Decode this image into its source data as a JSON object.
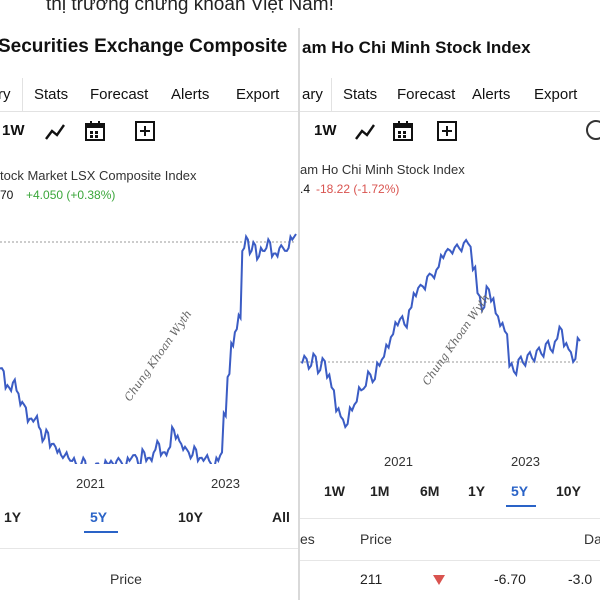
{
  "caption": "thị trường chứng khoán Việt Nam!",
  "left": {
    "title": "Securities Exchange Composite",
    "tabs": [
      "ry",
      "Stats",
      "Forecast",
      "Alerts",
      "Export"
    ],
    "toolbar": {
      "range_label": "1W",
      "icons": [
        "line-chart-icon",
        "calendar-icon",
        "plus-box-icon"
      ]
    },
    "legend_name": "tock Market LSX Composite Index",
    "legend_value": "70",
    "legend_change": "+4.050 (+0.38%)",
    "years": [
      "2021",
      "2023"
    ],
    "ranges": [
      "1Y",
      "5Y",
      "10Y",
      "All"
    ],
    "active_range": "5Y",
    "table_header": [
      "Price"
    ],
    "watermark": "Chung Khoan Wyth",
    "colors": {
      "line": "#3b5cc4",
      "positive": "#3aa63a"
    },
    "chart_data": {
      "type": "line",
      "title": "",
      "x_ticks": [
        "2021",
        "2023"
      ],
      "series": [
        {
          "values": [
            52,
            51,
            46,
            44,
            48,
            43,
            40,
            38,
            34,
            33,
            35,
            30,
            27,
            29,
            25,
            24,
            23,
            20,
            22,
            19,
            20,
            17,
            18,
            19,
            16,
            15,
            18,
            17,
            16,
            18,
            19,
            17,
            20,
            18,
            17,
            19,
            21,
            20,
            18,
            22,
            20,
            19,
            23,
            25,
            22,
            21,
            24,
            30,
            28,
            25,
            24,
            22,
            21,
            23,
            20,
            19,
            21,
            18,
            17,
            19,
            22,
            35,
            50,
            60,
            66,
            70,
            95,
            98,
            94,
            96,
            92,
            94,
            95,
            97,
            93,
            92,
            96,
            94,
            95,
            98,
            100
          ]
        }
      ]
    }
  },
  "right": {
    "title": "am Ho Chi Minh Stock Index",
    "tabs": [
      "ary",
      "Stats",
      "Forecast",
      "Alerts",
      "Export"
    ],
    "toolbar": {
      "range_label": "1W",
      "icons": [
        "line-chart-icon",
        "calendar-icon",
        "plus-box-icon"
      ]
    },
    "legend_name": "am Ho Chi Minh Stock Index",
    "legend_value": ".4",
    "legend_change": "-18.22 (-1.72%)",
    "years": [
      "2021",
      "2023"
    ],
    "ranges": [
      "1W",
      "1M",
      "6M",
      "1Y",
      "5Y",
      "10Y"
    ],
    "active_range": "5Y",
    "table_header": [
      "es",
      "Price",
      "Da"
    ],
    "table_row": [
      "211",
      "-6.70",
      "-3.0"
    ],
    "watermark": "Chung Khoan Wyth",
    "colors": {
      "line": "#3b5cc4",
      "negative": "#d9534f"
    },
    "chart_data": {
      "type": "line",
      "title": "",
      "x_ticks": [
        "2021",
        "2023"
      ],
      "series": [
        {
          "values": [
            45,
            47,
            44,
            48,
            42,
            46,
            40,
            33,
            25,
            20,
            18,
            24,
            28,
            33,
            35,
            40,
            38,
            44,
            48,
            52,
            58,
            62,
            66,
            61,
            70,
            75,
            80,
            78,
            85,
            83,
            88,
            92,
            96,
            94,
            98,
            95,
            100,
            97,
            88,
            75,
            70,
            78,
            74,
            66,
            63,
            58,
            45,
            40,
            48,
            44,
            50,
            46,
            52,
            48,
            55,
            50,
            56,
            60,
            54,
            50,
            47,
            55
          ]
        }
      ]
    }
  }
}
